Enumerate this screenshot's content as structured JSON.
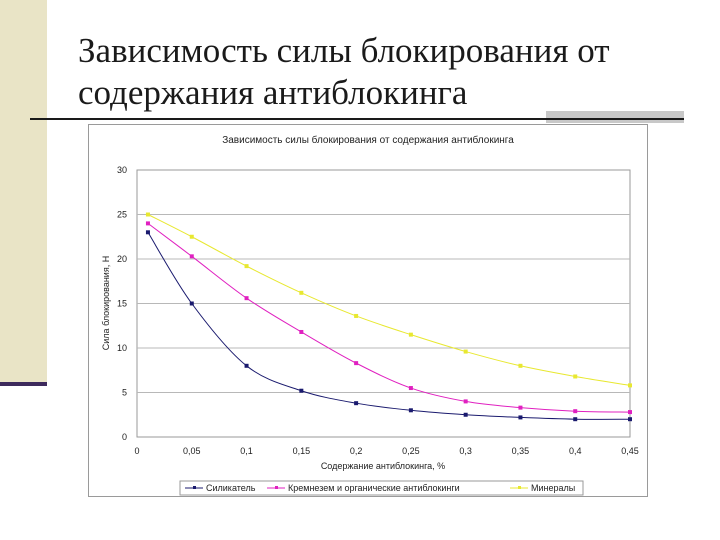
{
  "slide": {
    "title": "Зависимость силы блокирования от содержания антиблокинга"
  },
  "chart_data": {
    "type": "line",
    "title": "Зависимость силы блокирования от содержания антиблокинга",
    "xlabel": "Содержание антиблокинга, %",
    "ylabel": "Сила блокирования, Н",
    "xlim": [
      0,
      0.45
    ],
    "ylim": [
      0,
      30
    ],
    "x_ticks": [
      0,
      0.05,
      0.1,
      0.15,
      0.2,
      0.25,
      0.3,
      0.35,
      0.4,
      0.45
    ],
    "x_tick_labels": [
      "0",
      "0,05",
      "0,1",
      "0,15",
      "0,2",
      "0,25",
      "0,3",
      "0,35",
      "0,4",
      "0,45"
    ],
    "y_ticks": [
      0,
      5,
      10,
      15,
      20,
      25,
      30
    ],
    "y_tick_labels": [
      "0",
      "5",
      "10",
      "15",
      "20",
      "25",
      "30"
    ],
    "grid": "horizontal",
    "legend_position": "bottom",
    "series": [
      {
        "name": "Силикатель",
        "color": "#1a1a6e",
        "x": [
          0.01,
          0.05,
          0.1,
          0.15,
          0.2,
          0.25,
          0.3,
          0.35,
          0.4,
          0.45
        ],
        "values": [
          23,
          15,
          8,
          5.2,
          3.8,
          3.0,
          2.5,
          2.2,
          2.0,
          2.0
        ]
      },
      {
        "name": "Кремнезем и органические антиблокинги",
        "color": "#e020c0",
        "x": [
          0.01,
          0.05,
          0.1,
          0.15,
          0.2,
          0.25,
          0.3,
          0.35,
          0.4,
          0.45
        ],
        "values": [
          24,
          20.3,
          15.6,
          11.8,
          8.3,
          5.5,
          4.0,
          3.3,
          2.9,
          2.8
        ]
      },
      {
        "name": "Минералы",
        "color": "#e8e830",
        "x": [
          0.01,
          0.05,
          0.1,
          0.15,
          0.2,
          0.25,
          0.3,
          0.35,
          0.4,
          0.45
        ],
        "values": [
          25,
          22.5,
          19.2,
          16.2,
          13.6,
          11.5,
          9.6,
          8.0,
          6.8,
          5.8
        ]
      }
    ]
  }
}
